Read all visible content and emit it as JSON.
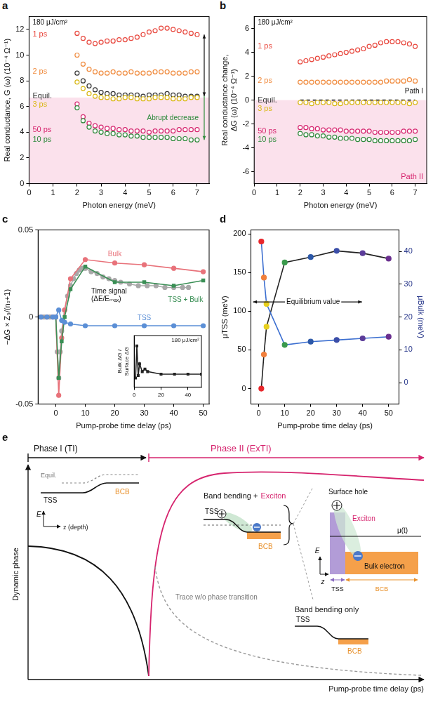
{
  "chart_data": [
    {
      "panel": "a",
      "type": "scatter",
      "x": [
        2,
        2.25,
        2.5,
        2.75,
        3,
        3.25,
        3.5,
        3.75,
        4,
        4.25,
        4.5,
        4.75,
        5,
        5.25,
        5.5,
        5.75,
        6,
        6.25,
        6.5,
        6.75,
        7
      ],
      "xlim": [
        0,
        7.5
      ],
      "xticks": [
        0,
        1,
        2,
        3,
        4,
        5,
        6,
        7
      ],
      "ylim": [
        0,
        13
      ],
      "yticks": [
        0,
        2,
        4,
        6,
        8,
        10,
        12
      ],
      "x_label": "Photon energy (meV)",
      "y_label": "Real conductance, G (ω) (10⁻⁴ Ω⁻¹)",
      "grid": false,
      "shade": [
        0,
        6.7
      ],
      "annotations": [
        "180 μJ/cm²",
        "Abrupt decrease"
      ],
      "series": [
        {
          "name": "1 ps",
          "color": "#e8463c",
          "marker": "open_circle",
          "line_style": "none",
          "values": [
            11.7,
            11.3,
            11.0,
            10.9,
            11.0,
            11.1,
            11.1,
            11.2,
            11.2,
            11.3,
            11.4,
            11.6,
            11.8,
            11.9,
            12.1,
            12.1,
            12.0,
            11.9,
            11.8,
            11.7,
            11.6
          ]
        },
        {
          "name": "2 ps",
          "color": "#f08a3c",
          "marker": "open_circle",
          "line_style": "none",
          "values": [
            10.0,
            9.3,
            8.9,
            8.7,
            8.6,
            8.6,
            8.7,
            8.6,
            8.6,
            8.7,
            8.6,
            8.6,
            8.6,
            8.7,
            8.7,
            8.7,
            8.6,
            8.6,
            8.6,
            8.7,
            8.7
          ]
        },
        {
          "name": "Equil.",
          "color": "#333333",
          "marker": "open_circle",
          "line_style": "none",
          "values": [
            8.6,
            8.0,
            7.6,
            7.3,
            7.1,
            7.0,
            7.0,
            6.9,
            6.9,
            6.9,
            6.9,
            6.8,
            6.9,
            6.9,
            6.9,
            7.0,
            6.9,
            6.9,
            6.8,
            6.8,
            6.8
          ]
        },
        {
          "name": "3 ps",
          "color": "#d9b814",
          "marker": "open_circle",
          "line_style": "none",
          "values": [
            7.9,
            7.4,
            7.0,
            6.8,
            6.7,
            6.7,
            6.6,
            6.6,
            6.7,
            6.7,
            6.6,
            6.6,
            6.6,
            6.7,
            6.7,
            6.7,
            6.6,
            6.6,
            6.6,
            6.7,
            6.7
          ]
        },
        {
          "name": "50 ps",
          "color": "#d6246e",
          "marker": "open_circle",
          "line_style": "none",
          "values": [
            6.2,
            5.2,
            4.7,
            4.5,
            4.4,
            4.3,
            4.3,
            4.2,
            4.2,
            4.1,
            4.1,
            4.1,
            4.0,
            4.1,
            4.1,
            4.1,
            4.1,
            4.2,
            4.2,
            4.2,
            4.2
          ]
        },
        {
          "name": "10 ps",
          "color": "#2f8a3c",
          "marker": "open_circle",
          "line_style": "none",
          "values": [
            5.9,
            4.9,
            4.4,
            4.1,
            4.0,
            3.9,
            3.9,
            3.8,
            3.8,
            3.7,
            3.7,
            3.6,
            3.6,
            3.6,
            3.6,
            3.6,
            3.5,
            3.5,
            3.5,
            3.4,
            3.4
          ]
        }
      ]
    },
    {
      "panel": "b",
      "type": "scatter",
      "x": [
        2,
        2.25,
        2.5,
        2.75,
        3,
        3.25,
        3.5,
        3.75,
        4,
        4.25,
        4.5,
        4.75,
        5,
        5.25,
        5.5,
        5.75,
        6,
        6.25,
        6.5,
        6.75,
        7
      ],
      "xlim": [
        0,
        7.5
      ],
      "xticks": [
        0,
        1,
        2,
        3,
        4,
        5,
        6,
        7
      ],
      "ylim": [
        -7,
        7
      ],
      "yticks": [
        -6,
        -4,
        -2,
        0,
        2,
        4,
        6
      ],
      "x_label": "Photon energy (meV)",
      "y_label": "Real conductance change, ΔG (ω) (10⁻⁴ Ω⁻¹)",
      "grid": false,
      "shade": [
        -7,
        0
      ],
      "annotations": [
        "180 μJ/cm²",
        "Path I",
        "Path II"
      ],
      "series": [
        {
          "name": "1 ps",
          "color": "#e8463c",
          "marker": "open_circle",
          "line_style": "none",
          "values": [
            3.2,
            3.3,
            3.4,
            3.5,
            3.6,
            3.7,
            3.8,
            3.9,
            4.0,
            4.1,
            4.2,
            4.3,
            4.5,
            4.6,
            4.8,
            4.9,
            4.9,
            4.9,
            4.8,
            4.7,
            4.5
          ]
        },
        {
          "name": "2 ps",
          "color": "#f08a3c",
          "marker": "open_circle",
          "line_style": "none",
          "values": [
            1.5,
            1.5,
            1.5,
            1.5,
            1.5,
            1.5,
            1.5,
            1.5,
            1.5,
            1.5,
            1.5,
            1.5,
            1.5,
            1.5,
            1.5,
            1.6,
            1.6,
            1.6,
            1.6,
            1.7,
            1.6
          ]
        },
        {
          "name": "Equil.",
          "color": "#333333",
          "marker": "none",
          "line_style": "dashed",
          "values": [
            0,
            0,
            0,
            0,
            0,
            0,
            0,
            0,
            0,
            0,
            0,
            0,
            0,
            0,
            0,
            0,
            0,
            0,
            0,
            0,
            0
          ]
        },
        {
          "name": "3 ps",
          "color": "#d9b814",
          "marker": "open_circle",
          "line_style": "none",
          "values": [
            -0.2,
            -0.2,
            -0.3,
            -0.2,
            -0.2,
            -0.2,
            -0.3,
            -0.3,
            -0.2,
            -0.2,
            -0.2,
            -0.2,
            -0.2,
            -0.2,
            -0.2,
            -0.2,
            -0.2,
            -0.2,
            -0.2,
            -0.3,
            -0.2
          ]
        },
        {
          "name": "50 ps",
          "color": "#d6246e",
          "marker": "open_circle",
          "line_style": "none",
          "values": [
            -2.3,
            -2.3,
            -2.4,
            -2.4,
            -2.5,
            -2.5,
            -2.5,
            -2.5,
            -2.6,
            -2.6,
            -2.6,
            -2.6,
            -2.6,
            -2.7,
            -2.7,
            -2.7,
            -2.7,
            -2.7,
            -2.6,
            -2.6,
            -2.6
          ]
        },
        {
          "name": "10 ps",
          "color": "#2f8a3c",
          "marker": "open_circle",
          "line_style": "none",
          "values": [
            -2.8,
            -2.9,
            -2.9,
            -3.0,
            -3.0,
            -3.1,
            -3.1,
            -3.2,
            -3.2,
            -3.2,
            -3.3,
            -3.3,
            -3.3,
            -3.4,
            -3.4,
            -3.4,
            -3.4,
            -3.4,
            -3.4,
            -3.4,
            -3.3
          ]
        }
      ]
    },
    {
      "panel": "c",
      "type": "scatter",
      "xlim": [
        -6,
        52
      ],
      "xticks": [
        0,
        10,
        20,
        30,
        40,
        50
      ],
      "ylim": [
        -0.05,
        0.05
      ],
      "yticks": [
        -0.05,
        0,
        0.05
      ],
      "x_label": "Pump-probe time delay (ps)",
      "y_label": "−ΔG × Z₀/(nₛ+1)",
      "grid": false,
      "series": [
        {
          "name": "Time signal (ΔE/Eₘₐₓ)",
          "color": "#a8a8a8",
          "marker": "circle",
          "line_style": "solid",
          "x": [
            -5,
            -4,
            -3,
            -2,
            -1,
            0,
            0.5,
            1,
            1.5,
            2,
            3,
            4,
            5,
            6,
            7,
            8,
            9,
            10,
            12,
            14,
            16,
            18,
            20,
            22,
            25,
            28,
            31,
            34,
            37,
            40,
            43,
            45
          ],
          "values": [
            0,
            0,
            0,
            0,
            0,
            0,
            -0.02,
            -0.035,
            -0.02,
            -0.008,
            0.004,
            0.012,
            0.018,
            0.022,
            0.025,
            0.027,
            0.028,
            0.028,
            0.026,
            0.025,
            0.023,
            0.022,
            0.021,
            0.02,
            0.019,
            0.018,
            0.018,
            0.018,
            0.017,
            0.017,
            0.017,
            0.017
          ]
        },
        {
          "name": "Bulk",
          "color": "#e8727a",
          "marker": "circle",
          "line_style": "solid",
          "x": [
            -5,
            -3,
            -1,
            0,
            1,
            2,
            3,
            5,
            10,
            20,
            30,
            40,
            50
          ],
          "values": [
            0,
            0,
            0,
            0,
            -0.045,
            -0.012,
            0.004,
            0.022,
            0.033,
            0.031,
            0.03,
            0.028,
            0.026
          ]
        },
        {
          "name": "TSS + Bulk",
          "color": "#3a8f55",
          "marker": "square",
          "line_style": "solid",
          "x": [
            -5,
            -3,
            -1,
            0,
            1,
            2,
            3,
            5,
            10,
            20,
            30,
            40,
            50
          ],
          "values": [
            0,
            0,
            0,
            0,
            -0.035,
            -0.014,
            0,
            0.016,
            0.029,
            0.02,
            0.02,
            0.018,
            0.021
          ]
        },
        {
          "name": "TSS",
          "color": "#5b8fd6",
          "marker": "circle",
          "line_style": "solid",
          "x": [
            -5,
            -3,
            -1,
            0,
            1,
            2,
            3,
            5,
            10,
            20,
            30,
            40,
            50
          ],
          "values": [
            0,
            0,
            0,
            0,
            0.004,
            -0.002,
            -0.003,
            -0.004,
            -0.005,
            -0.005,
            -0.005,
            -0.005,
            -0.005
          ]
        }
      ],
      "inset": {
        "type": "scatter",
        "title": "180 μJ/cm²",
        "x": [
          1,
          2,
          3,
          4,
          6,
          8,
          10,
          20,
          30,
          40,
          50
        ],
        "xlim": [
          0,
          50
        ],
        "xticks": [
          0,
          20,
          40
        ],
        "ylim": [
          0,
          20
        ],
        "y_label": "Bulk ΔG / Surface ΔG",
        "tick_labels": "x",
        "grid": false,
        "series": [
          {
            "color": "#222222",
            "marker": "square",
            "line_style": "solid",
            "values": [
              3.5,
              16,
              4.5,
              9,
              6,
              7,
              6,
              5,
              5,
              5,
              5
            ]
          }
        ]
      }
    },
    {
      "panel": "d",
      "type": "scatter",
      "x": [
        1,
        2,
        3,
        10,
        20,
        30,
        40,
        50
      ],
      "xlim": [
        -3,
        54
      ],
      "xticks": [
        0,
        10,
        20,
        30,
        40,
        50
      ],
      "ylim": [
        -20,
        205
      ],
      "yticks": [
        0,
        50,
        100,
        150,
        200
      ],
      "y2lim": [
        -6.5,
        46.5
      ],
      "y2ticks": [
        0,
        10,
        20,
        30,
        40
      ],
      "x_label": "Pump-probe time delay (ps)",
      "y_label": "μTSS (meV)",
      "y2_label": "μBulk (meV)",
      "grid": false,
      "annotations": [
        {
          "text": "Equilibrium value",
          "y": 112
        }
      ],
      "series": [
        {
          "color": "#222222",
          "colors": [
            "#e8262b",
            "#f07f3c",
            "#e8d01e",
            "#3a9a4c",
            "#2c58a8",
            "#3b4ea8",
            "#5b3c99",
            "#6a2f8f"
          ],
          "marker": "circle",
          "line_style": "solid",
          "values": [
            0,
            44,
            80,
            163,
            170,
            178,
            175,
            168
          ]
        },
        {
          "color": "#3c6fd0",
          "colors": [
            "#e8262b",
            "#f07f3c",
            "#e8d01e",
            "#3a9a4c",
            "#2c58a8",
            "#3b4ea8",
            "#5b3c99",
            "#6a2f8f"
          ],
          "marker": "circle",
          "line_style": "solid",
          "axis": "y2",
          "values": [
            43,
            32,
            24,
            11.5,
            12.5,
            13,
            13.5,
            14
          ]
        }
      ]
    }
  ],
  "diagram": {
    "panel": "e",
    "x_axis": "Pump-probe time delay (ps)",
    "y_axis": "Dynamic phase",
    "phase_1": "Phase I (TI)",
    "phase_2": "Phase II (ExTI)",
    "phase_1_sketch": {
      "equil": "Equil.",
      "tss": "TSS",
      "bcb": "BCB",
      "energy": "E",
      "depth": "z (depth)"
    },
    "band_bending_exciton": {
      "text": "Band bending +",
      "exciton": "Exciton",
      "tss": "TSS",
      "bcb": "BCB"
    },
    "trace": "Trace w/o phase transition",
    "band_bending_only": {
      "text": "Band bending only",
      "tss": "TSS",
      "bcb": "BCB"
    },
    "zoom": {
      "hole": "Surface hole",
      "exciton": "Exciton",
      "electron": "Bulk electron",
      "potential": "μ(t)",
      "tss": "TSS",
      "bcb": "BCB",
      "energy": "E",
      "depth": "z"
    }
  }
}
